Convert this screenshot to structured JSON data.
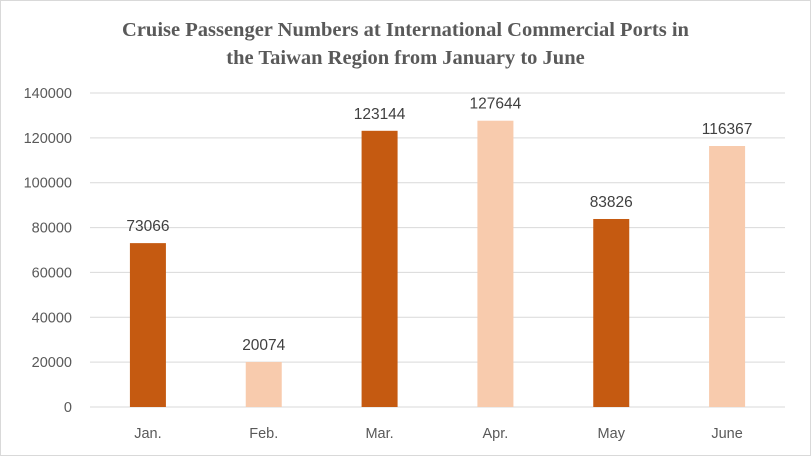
{
  "chart_data": {
    "type": "bar",
    "title_lines": [
      "Cruise Passenger Numbers at International Commercial Ports in",
      "the Taiwan Region from January to June"
    ],
    "categories": [
      "Jan.",
      "Feb.",
      "Mar.",
      "Apr.",
      "May",
      "June"
    ],
    "values": [
      73066,
      20074,
      123144,
      127644,
      83826,
      116367
    ],
    "bar_colors": [
      "#c55a11",
      "#f8cbad",
      "#c55a11",
      "#f8cbad",
      "#c55a11",
      "#f8cbad"
    ],
    "ylim": [
      0,
      140000
    ],
    "yticks": [
      "0",
      "20000",
      "40000",
      "60000",
      "80000",
      "100000",
      "120000",
      "140000"
    ],
    "grid": true,
    "gridline_color": "#d9d9d9",
    "legend": "none"
  }
}
